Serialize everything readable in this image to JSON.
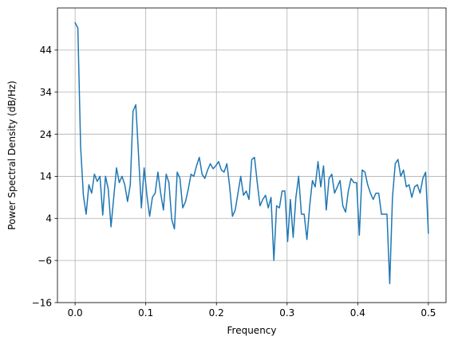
{
  "chart_data": {
    "type": "line",
    "title": "",
    "xlabel": "Frequency",
    "ylabel": "Power Spectral Density (dB/Hz)",
    "xlim": [
      -0.025,
      0.525
    ],
    "ylim": [
      -16,
      54
    ],
    "xticks": [
      0.0,
      0.1,
      0.2,
      0.3,
      0.4,
      0.5
    ],
    "xtick_labels": [
      "0.0",
      "0.1",
      "0.2",
      "0.3",
      "0.4",
      "0.5"
    ],
    "yticks": [
      -16,
      -6,
      4,
      14,
      24,
      34,
      44
    ],
    "ytick_labels": [
      "−16",
      "−6",
      "4",
      "14",
      "24",
      "34",
      "44"
    ],
    "grid": true,
    "line_color": "#1f77b4",
    "series": [
      {
        "x": [
          0.0,
          0.0039,
          0.0078,
          0.0117,
          0.0156,
          0.0195,
          0.0234,
          0.0273,
          0.0313,
          0.0352,
          0.0391,
          0.043,
          0.0469,
          0.0508,
          0.0547,
          0.0586,
          0.0625,
          0.0664,
          0.0703,
          0.0742,
          0.0781,
          0.082,
          0.0859,
          0.0898,
          0.0938,
          0.0977,
          0.1016,
          0.1055,
          0.1094,
          0.1133,
          0.1172,
          0.1211,
          0.125,
          0.1289,
          0.1328,
          0.1367,
          0.1406,
          0.1445,
          0.1484,
          0.1523,
          0.1563,
          0.1602,
          0.1641,
          0.168,
          0.1719,
          0.1758,
          0.1797,
          0.1836,
          0.1875,
          0.1914,
          0.1953,
          0.1992,
          0.2031,
          0.207,
          0.2109,
          0.2148,
          0.2188,
          0.2227,
          0.2266,
          0.2305,
          0.2344,
          0.2383,
          0.2422,
          0.2461,
          0.25,
          0.2539,
          0.2578,
          0.2617,
          0.2656,
          0.2695,
          0.2734,
          0.2773,
          0.2813,
          0.2852,
          0.2891,
          0.293,
          0.2969,
          0.3008,
          0.3047,
          0.3086,
          0.3125,
          0.3164,
          0.3203,
          0.3242,
          0.3281,
          0.332,
          0.3359,
          0.3398,
          0.3438,
          0.3477,
          0.3516,
          0.3555,
          0.3594,
          0.3633,
          0.3672,
          0.3711,
          0.375,
          0.3789,
          0.3828,
          0.3867,
          0.3906,
          0.3945,
          0.3984,
          0.4023,
          0.4063,
          0.4102,
          0.4141,
          0.418,
          0.4219,
          0.4258,
          0.4297,
          0.4336,
          0.4375,
          0.4414,
          0.4453,
          0.4492,
          0.4531,
          0.457,
          0.4609,
          0.4648,
          0.4688,
          0.4727,
          0.4766,
          0.4805,
          0.4844,
          0.4883,
          0.4922,
          0.4961,
          0.5
        ],
        "y": [
          50.5,
          49.2,
          21.0,
          9.5,
          5.0,
          12.0,
          10.0,
          14.5,
          12.8,
          14.0,
          4.8,
          14.0,
          11.0,
          2.0,
          9.0,
          16.0,
          12.5,
          14.0,
          12.0,
          8.0,
          12.0,
          29.5,
          31.0,
          19.0,
          6.5,
          16.0,
          9.5,
          4.5,
          9.0,
          10.0,
          15.0,
          10.0,
          6.0,
          14.5,
          12.5,
          3.8,
          1.5,
          15.0,
          13.5,
          6.5,
          8.0,
          11.0,
          14.5,
          14.0,
          16.5,
          18.5,
          14.5,
          13.5,
          15.5,
          17.0,
          15.8,
          16.5,
          17.5,
          15.5,
          15.0,
          17.0,
          11.5,
          4.5,
          6.0,
          10.0,
          14.0,
          9.5,
          10.5,
          8.5,
          18.0,
          18.5,
          12.5,
          7.0,
          8.5,
          9.5,
          6.5,
          9.0,
          -6.0,
          7.0,
          6.5,
          10.5,
          10.5,
          -1.5,
          8.5,
          -0.5,
          9.0,
          14.0,
          5.0,
          5.0,
          -1.0,
          7.0,
          13.0,
          11.5,
          17.5,
          11.5,
          16.5,
          6.0,
          13.5,
          14.5,
          10.0,
          11.5,
          13.0,
          7.0,
          5.5,
          10.5,
          13.5,
          12.5,
          12.5,
          0.0,
          15.5,
          15.0,
          12.0,
          10.0,
          8.5,
          10.0,
          10.0,
          5.0,
          5.0,
          5.0,
          -11.5,
          9.0,
          17.0,
          18.0,
          14.0,
          15.5,
          11.5,
          12.0,
          9.0,
          11.5,
          12.0,
          10.0,
          13.5,
          15.0,
          0.5
        ]
      }
    ]
  }
}
